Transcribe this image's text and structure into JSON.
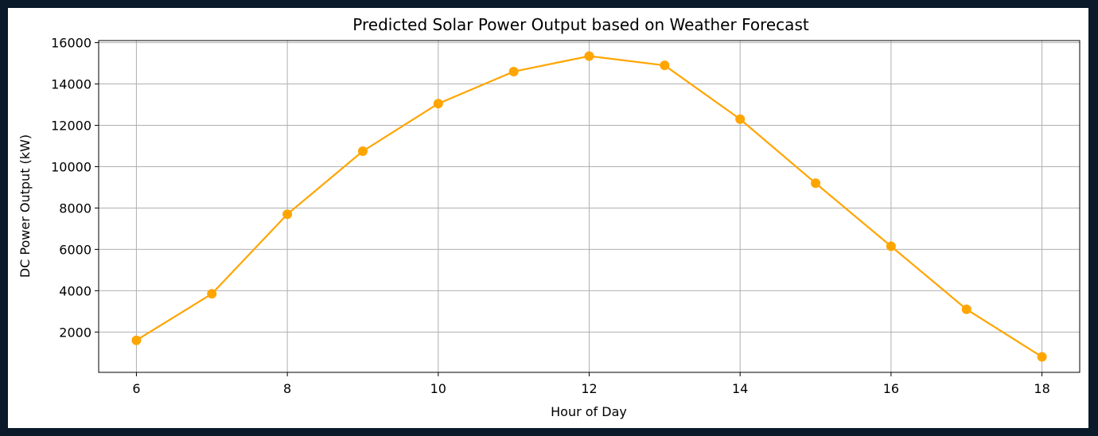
{
  "background_color": "#0b1a2a",
  "chart_data": {
    "type": "line",
    "title": "Predicted Solar Power Output based on Weather Forecast",
    "xlabel": "Hour of Day",
    "ylabel": "DC Power Output (kW)",
    "x": [
      6,
      7,
      8,
      9,
      10,
      11,
      12,
      13,
      14,
      15,
      16,
      17,
      18
    ],
    "series": [
      {
        "values": [
          1600,
          3850,
          7700,
          10750,
          13050,
          14600,
          15350,
          14900,
          12300,
          9200,
          6150,
          3100,
          800
        ],
        "color": "#ffa500",
        "marker": "circle"
      }
    ],
    "xlim": [
      5.5,
      18.5
    ],
    "ylim": [
      50,
      16100
    ],
    "xticks": [
      6,
      8,
      10,
      12,
      14,
      16,
      18
    ],
    "yticks": [
      2000,
      4000,
      6000,
      8000,
      10000,
      12000,
      14000,
      16000
    ],
    "grid": true,
    "grid_color": "#b0b0b0"
  }
}
